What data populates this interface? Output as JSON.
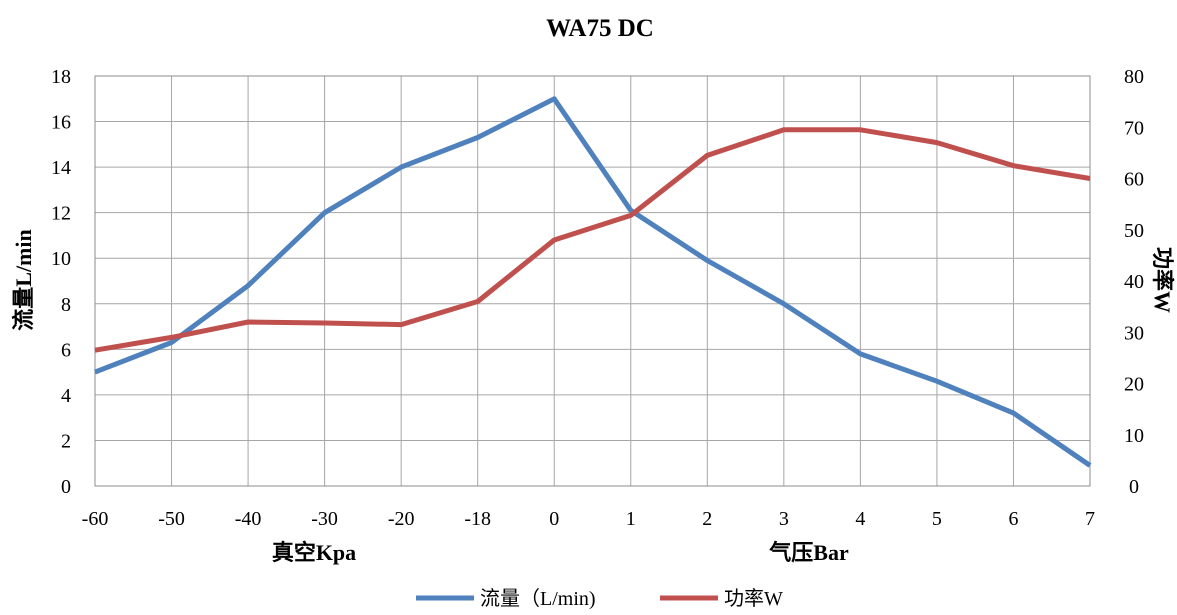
{
  "chart_data": {
    "type": "line",
    "title": "WA75 DC",
    "categories": [
      "-60",
      "-50",
      "-40",
      "-30",
      "-20",
      "-18",
      "0",
      "1",
      "2",
      "3",
      "4",
      "5",
      "6",
      "7"
    ],
    "xlabel_left": "真空Kpa",
    "xlabel_right": "气压Bar",
    "ylabel_left": "流量L/min",
    "ylabel_right": "功率W",
    "ylim_left": [
      0,
      18
    ],
    "yticks_left": [
      0,
      2,
      4,
      6,
      8,
      10,
      12,
      14,
      16,
      18
    ],
    "ylim_right": [
      0,
      80
    ],
    "yticks_right": [
      0,
      10,
      20,
      30,
      40,
      50,
      60,
      70,
      80
    ],
    "grid": true,
    "legend_position": "bottom",
    "series": [
      {
        "name": "流量（L/min)",
        "axis": "left",
        "color": "#4f81bd",
        "values": [
          5.0,
          6.3,
          8.8,
          12.0,
          14.0,
          15.3,
          17.0,
          12.1,
          9.9,
          8.0,
          5.8,
          4.6,
          3.2,
          0.9
        ]
      },
      {
        "name": "功率W",
        "axis": "right",
        "color": "#c0504d",
        "values": [
          26.5,
          29.0,
          32.0,
          31.8,
          31.5,
          36.0,
          48.0,
          52.8,
          64.5,
          69.5,
          69.5,
          67.0,
          62.5,
          60.0
        ]
      }
    ]
  }
}
